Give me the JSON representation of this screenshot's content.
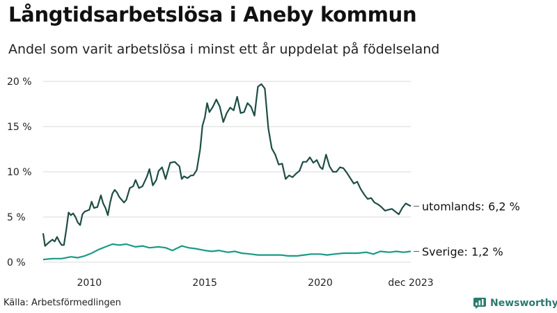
{
  "header": {
    "title": "Långtidsarbetslösa i Aneby kommun",
    "subtitle": "Andel som varit arbetslösa i minst ett år uppdelat på födelseland"
  },
  "footer": {
    "source": "Källa: Arbetsförmedlingen",
    "brand": "Newsworthy"
  },
  "colors": {
    "utomlands": "#1e4d45",
    "sverige": "#1a9a86",
    "grid": "#d9d9d9"
  },
  "chart_data": {
    "type": "line",
    "title": "Långtidsarbetslösa i Aneby kommun",
    "xlabel": "",
    "ylabel": "",
    "x_range": [
      2008.0,
      2023.92
    ],
    "ylim": [
      0,
      20
    ],
    "y_ticks": [
      0,
      5,
      10,
      15,
      20
    ],
    "y_tick_labels": [
      "0 %",
      "5 %",
      "10 %",
      "15 %",
      "20 %"
    ],
    "x_ticks": [
      2010,
      2015,
      2020,
      2023.92
    ],
    "x_tick_labels": [
      "2010",
      "2015",
      "2020",
      "dec 2023"
    ],
    "grid": true,
    "series": [
      {
        "name": "utomlands",
        "end_label": "utomlands: 6,2 %",
        "color": "#1e4d45",
        "x": [
          2008.0,
          2008.08,
          2008.25,
          2008.4,
          2008.5,
          2008.6,
          2008.7,
          2008.8,
          2008.9,
          2009.0,
          2009.1,
          2009.2,
          2009.3,
          2009.4,
          2009.5,
          2009.6,
          2009.7,
          2009.8,
          2010.0,
          2010.1,
          2010.2,
          2010.35,
          2010.5,
          2010.6,
          2010.7,
          2010.8,
          2010.9,
          2011.0,
          2011.1,
          2011.2,
          2011.3,
          2011.5,
          2011.6,
          2011.75,
          2011.9,
          2012.0,
          2012.15,
          2012.3,
          2012.5,
          2012.6,
          2012.75,
          2012.9,
          2013.0,
          2013.15,
          2013.3,
          2013.5,
          2013.7,
          2013.9,
          2014.0,
          2014.1,
          2014.25,
          2014.4,
          2014.5,
          2014.65,
          2014.8,
          2014.9,
          2015.0,
          2015.1,
          2015.2,
          2015.35,
          2015.5,
          2015.65,
          2015.8,
          2015.95,
          2016.1,
          2016.25,
          2016.4,
          2016.55,
          2016.7,
          2016.85,
          2017.0,
          2017.15,
          2017.3,
          2017.45,
          2017.6,
          2017.75,
          2017.9,
          2018.05,
          2018.2,
          2018.35,
          2018.5,
          2018.65,
          2018.8,
          2018.95,
          2019.1,
          2019.25,
          2019.4,
          2019.55,
          2019.7,
          2019.85,
          2020.0,
          2020.1,
          2020.25,
          2020.4,
          2020.55,
          2020.7,
          2020.85,
          2021.0,
          2021.15,
          2021.3,
          2021.45,
          2021.6,
          2021.75,
          2021.9,
          2022.05,
          2022.2,
          2022.35,
          2022.5,
          2022.65,
          2022.8,
          2022.95,
          2023.1,
          2023.25,
          2023.4,
          2023.55,
          2023.7,
          2023.92
        ],
        "values": [
          3.2,
          1.8,
          2.2,
          2.5,
          2.3,
          2.8,
          2.3,
          1.9,
          1.9,
          3.6,
          5.5,
          5.2,
          5.4,
          5.0,
          4.4,
          4.1,
          5.3,
          5.6,
          5.8,
          6.7,
          6.0,
          6.1,
          7.4,
          6.5,
          6.0,
          5.2,
          6.6,
          7.6,
          8.0,
          7.7,
          7.2,
          6.6,
          6.9,
          8.2,
          8.4,
          9.1,
          8.2,
          8.4,
          9.5,
          10.3,
          8.5,
          9.1,
          10.1,
          10.5,
          9.2,
          11.0,
          11.1,
          10.6,
          9.2,
          9.5,
          9.3,
          9.6,
          9.6,
          10.2,
          12.5,
          15.1,
          16.0,
          17.6,
          16.6,
          17.2,
          18.0,
          17.2,
          15.5,
          16.5,
          17.1,
          16.8,
          18.3,
          16.5,
          16.6,
          17.6,
          17.2,
          16.2,
          19.4,
          19.7,
          19.2,
          14.8,
          12.6,
          11.9,
          10.8,
          10.9,
          9.2,
          9.6,
          9.4,
          9.8,
          10.1,
          11.1,
          11.1,
          11.6,
          11.0,
          11.3,
          10.5,
          10.3,
          11.9,
          10.6,
          10.0,
          10.0,
          10.5,
          10.4,
          9.9,
          9.3,
          8.7,
          8.9,
          8.1,
          7.5,
          7.0,
          7.1,
          6.6,
          6.4,
          6.1,
          5.7,
          5.8,
          5.9,
          5.6,
          5.3,
          6.0,
          6.5,
          6.2
        ]
      },
      {
        "name": "Sverige",
        "end_label": "Sverige: 1,2 %",
        "color": "#1a9a86",
        "x": [
          2008.0,
          2008.4,
          2008.8,
          2009.2,
          2009.5,
          2009.8,
          2010.1,
          2010.4,
          2010.7,
          2011.0,
          2011.3,
          2011.6,
          2012.0,
          2012.3,
          2012.6,
          2013.0,
          2013.3,
          2013.6,
          2014.0,
          2014.3,
          2014.6,
          2015.0,
          2015.3,
          2015.6,
          2016.0,
          2016.3,
          2016.6,
          2017.0,
          2017.3,
          2017.6,
          2018.0,
          2018.3,
          2018.6,
          2019.0,
          2019.3,
          2019.6,
          2020.0,
          2020.3,
          2020.6,
          2021.0,
          2021.3,
          2021.6,
          2022.0,
          2022.3,
          2022.6,
          2023.0,
          2023.3,
          2023.6,
          2023.92
        ],
        "values": [
          0.3,
          0.4,
          0.4,
          0.6,
          0.5,
          0.7,
          1.0,
          1.4,
          1.7,
          2.0,
          1.9,
          2.0,
          1.7,
          1.8,
          1.6,
          1.7,
          1.6,
          1.3,
          1.8,
          1.6,
          1.5,
          1.3,
          1.2,
          1.3,
          1.1,
          1.2,
          1.0,
          0.9,
          0.8,
          0.8,
          0.8,
          0.8,
          0.7,
          0.7,
          0.8,
          0.9,
          0.9,
          0.8,
          0.9,
          1.0,
          1.0,
          1.0,
          1.1,
          0.9,
          1.2,
          1.1,
          1.2,
          1.1,
          1.2
        ]
      }
    ]
  }
}
